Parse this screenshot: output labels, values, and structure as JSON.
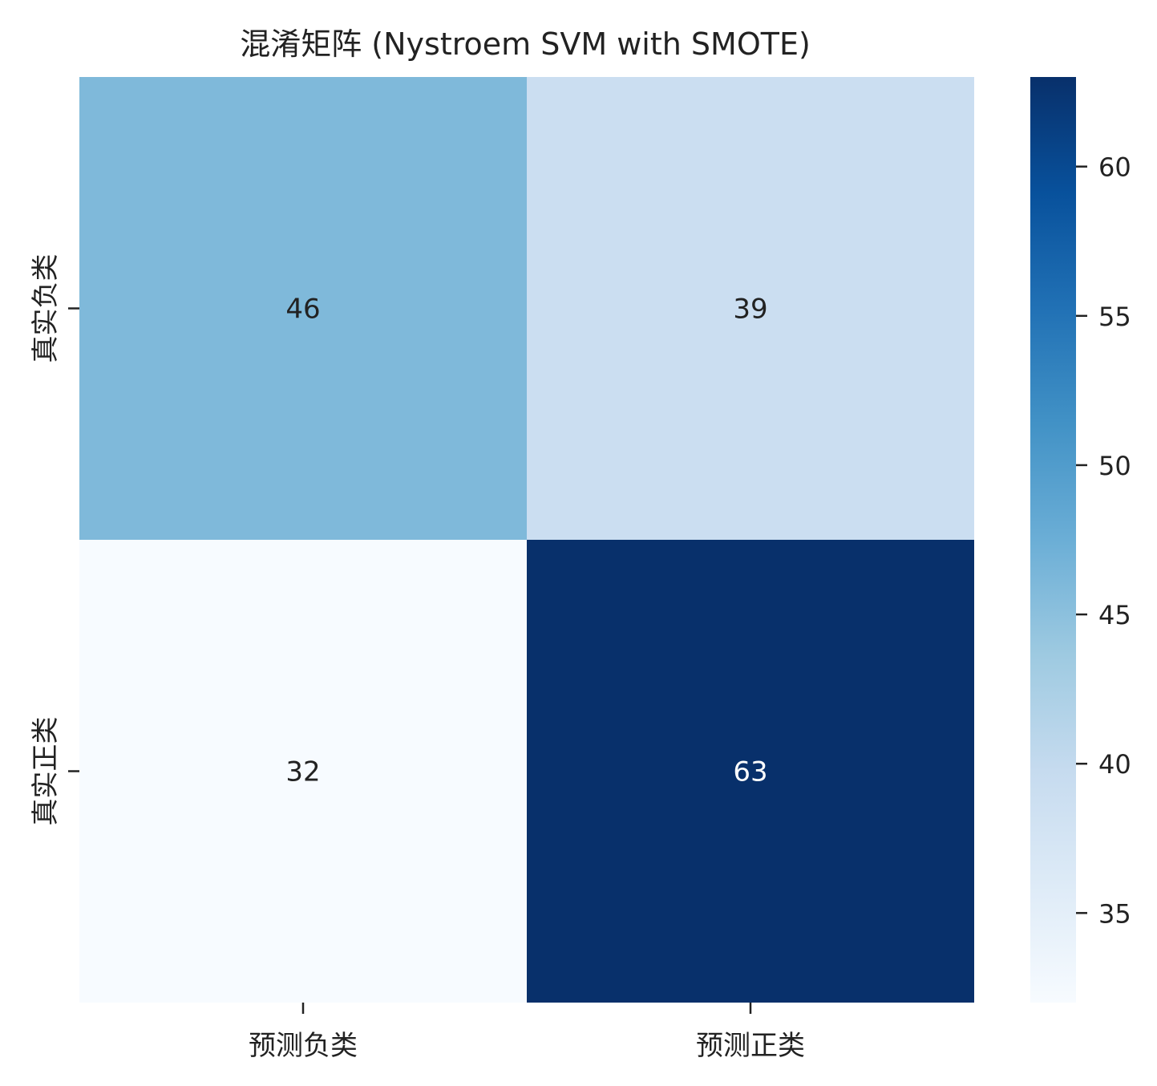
{
  "chart_data": {
    "type": "heatmap",
    "title": "混淆矩阵 (Nystroem SVM with SMOTE)",
    "xlabel": "",
    "ylabel": "",
    "x_categories": [
      "预测负类",
      "预测正类"
    ],
    "y_categories": [
      "真实负类",
      "真实正类"
    ],
    "values": [
      [
        46,
        39
      ],
      [
        32,
        63
      ]
    ],
    "colormap": "Blues",
    "colorbar": {
      "range": [
        32,
        63
      ],
      "ticks": [
        35,
        40,
        45,
        50,
        55,
        60
      ],
      "tick_labels": [
        "35",
        "40",
        "45",
        "50",
        "55",
        "60"
      ]
    },
    "annotations": true,
    "grid": false,
    "legend": "colorbar-right"
  },
  "colors": {
    "blues": [
      "#f7fbff",
      "#deebf7",
      "#c6dbef",
      "#9ecae1",
      "#6baed6",
      "#4292c6",
      "#2171b5",
      "#08519c",
      "#08306b"
    ],
    "text_dark": "#222222",
    "text_light": "#ffffff"
  }
}
